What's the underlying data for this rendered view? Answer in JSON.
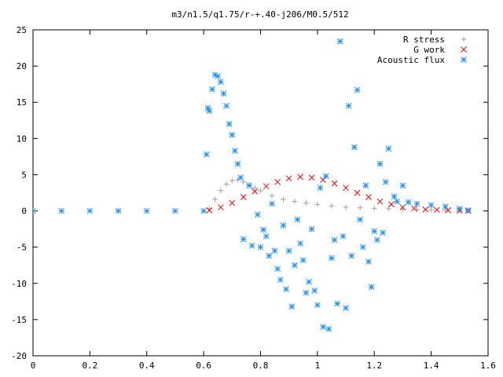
{
  "chart_data": {
    "type": "scatter",
    "title": "m3/n1.5/q1.75/r-+.40-j206/M0.5/512",
    "xlabel": "",
    "ylabel": "",
    "xlim": [
      0,
      1.6
    ],
    "ylim": [
      -20,
      25
    ],
    "x_ticks": [
      {
        "value": 0,
        "label": "0"
      },
      {
        "value": 0.2,
        "label": "0.2"
      },
      {
        "value": 0.4,
        "label": "0.4"
      },
      {
        "value": 0.6,
        "label": "0.6"
      },
      {
        "value": 0.8,
        "label": "0.8"
      },
      {
        "value": 1.0,
        "label": "1"
      },
      {
        "value": 1.2,
        "label": "1.2"
      },
      {
        "value": 1.4,
        "label": "1.4"
      },
      {
        "value": 1.6,
        "label": "1.6"
      }
    ],
    "y_ticks": [
      {
        "value": 25,
        "label": "25"
      },
      {
        "value": 20,
        "label": "20"
      },
      {
        "value": 15,
        "label": "15"
      },
      {
        "value": 10,
        "label": "10"
      },
      {
        "value": 5,
        "label": "5"
      },
      {
        "value": 0,
        "label": "0"
      },
      {
        "value": -5,
        "label": "-5"
      },
      {
        "value": -10,
        "label": "-10"
      },
      {
        "value": -15,
        "label": "-15"
      },
      {
        "value": -20,
        "label": "-20"
      }
    ],
    "grid": false,
    "legend_position": "top-right",
    "series": [
      {
        "name": "R stress",
        "marker": "plus",
        "color": "#a0a0a4",
        "x": [
          0.62,
          0.64,
          0.66,
          0.68,
          0.7,
          0.72,
          0.74,
          0.76,
          0.78,
          0.8,
          0.84,
          0.88,
          0.92,
          0.96,
          1.0,
          1.05,
          1.1,
          1.15,
          1.2,
          1.25,
          1.3,
          1.35,
          1.4,
          1.45,
          1.5,
          1.53
        ],
        "y": [
          0.3,
          1.6,
          2.8,
          3.7,
          4.2,
          4.3,
          4.0,
          3.6,
          3.2,
          2.8,
          2.1,
          1.6,
          1.3,
          1.1,
          0.9,
          0.7,
          0.5,
          0.45,
          0.35,
          0.3,
          0.25,
          0.2,
          0.15,
          0.1,
          0.05,
          0.0
        ]
      },
      {
        "name": "G work",
        "marker": "cross",
        "color": "#ff0000",
        "x": [
          0.62,
          0.66,
          0.7,
          0.74,
          0.78,
          0.82,
          0.86,
          0.9,
          0.94,
          0.98,
          1.02,
          1.06,
          1.1,
          1.14,
          1.18,
          1.22,
          1.26,
          1.3,
          1.34,
          1.38,
          1.42,
          1.46,
          1.5,
          1.53
        ],
        "y": [
          0.1,
          0.5,
          1.1,
          1.9,
          2.7,
          3.4,
          4.0,
          4.5,
          4.7,
          4.6,
          4.3,
          3.8,
          3.2,
          2.5,
          1.9,
          1.3,
          0.9,
          0.5,
          0.35,
          0.2,
          0.15,
          0.1,
          0.05,
          0.0
        ]
      },
      {
        "name": "Acoustic flux",
        "marker": "star",
        "color": "#1e90ff",
        "x": [
          0.0,
          0.1,
          0.2,
          0.3,
          0.4,
          0.5,
          0.6,
          0.61,
          0.615,
          0.62,
          0.63,
          0.64,
          0.65,
          0.66,
          0.67,
          0.68,
          0.69,
          0.7,
          0.71,
          0.72,
          0.73,
          0.74,
          0.76,
          0.77,
          0.79,
          0.8,
          0.81,
          0.82,
          0.83,
          0.84,
          0.85,
          0.86,
          0.87,
          0.88,
          0.89,
          0.9,
          0.91,
          0.92,
          0.93,
          0.94,
          0.95,
          0.96,
          0.97,
          0.98,
          0.99,
          1.0,
          1.01,
          1.02,
          1.03,
          1.04,
          1.05,
          1.06,
          1.07,
          1.08,
          1.09,
          1.1,
          1.11,
          1.12,
          1.13,
          1.14,
          1.15,
          1.16,
          1.17,
          1.18,
          1.19,
          1.2,
          1.21,
          1.22,
          1.23,
          1.24,
          1.25,
          1.27,
          1.28,
          1.3,
          1.32,
          1.35,
          1.4,
          1.45,
          1.5,
          1.53
        ],
        "y": [
          0,
          0,
          0,
          0,
          0,
          0,
          0,
          7.8,
          14.2,
          13.8,
          16.8,
          18.8,
          18.6,
          17.8,
          16.2,
          14.5,
          12.0,
          10.5,
          8.3,
          6.5,
          4.6,
          -3.9,
          3.5,
          -4.8,
          -0.5,
          -5.0,
          -2.6,
          -3.5,
          -6.2,
          1.0,
          -5.5,
          -8.0,
          -9.5,
          -2.0,
          -10.8,
          -5.5,
          -13.2,
          -7.5,
          -1.2,
          -4.5,
          -6.8,
          -11.3,
          -9.8,
          -2.5,
          -11.0,
          -13.0,
          3.2,
          -16.0,
          4.8,
          -16.3,
          -6.5,
          -4.0,
          -12.8,
          23.4,
          -3.5,
          -13.4,
          14.5,
          -6.2,
          8.8,
          16.7,
          -1.2,
          -5.0,
          3.5,
          -7.0,
          -10.5,
          -2.8,
          -4.0,
          6.5,
          -3.0,
          4.0,
          8.6,
          2.0,
          1.3,
          3.5,
          1.2,
          1.0,
          0.8,
          0.6,
          0.3,
          0.1
        ]
      }
    ]
  }
}
